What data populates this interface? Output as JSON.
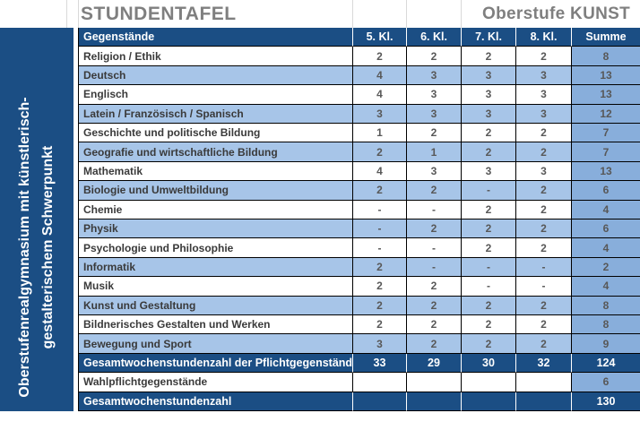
{
  "header": {
    "title": "STUNDENTAFEL",
    "right_label": "Oberstufe KUNST"
  },
  "sidebar": {
    "line1": "Oberstufenrealgymnasium mit künstlerisch-",
    "line2": "gestalterischem Schwerpunkt"
  },
  "table": {
    "columns": [
      "Gegenstände",
      "5. Kl.",
      "6. Kl.",
      "7. Kl.",
      "8. Kl.",
      "Summe"
    ],
    "rows": [
      {
        "label": "Religion / Ethik",
        "values": [
          "2",
          "2",
          "2",
          "2"
        ],
        "sum": "8",
        "type": "normal"
      },
      {
        "label": "Deutsch",
        "values": [
          "4",
          "3",
          "3",
          "3"
        ],
        "sum": "13",
        "type": "normal"
      },
      {
        "label": "Englisch",
        "values": [
          "4",
          "3",
          "3",
          "3"
        ],
        "sum": "13",
        "type": "normal"
      },
      {
        "label": "Latein / Französisch / Spanisch",
        "values": [
          "3",
          "3",
          "3",
          "3"
        ],
        "sum": "12",
        "type": "normal"
      },
      {
        "label": "Geschichte und politische Bildung",
        "values": [
          "1",
          "2",
          "2",
          "2"
        ],
        "sum": "7",
        "type": "normal"
      },
      {
        "label": "Geografie und wirtschaftliche Bildung",
        "values": [
          "2",
          "1",
          "2",
          "2"
        ],
        "sum": "7",
        "type": "normal"
      },
      {
        "label": "Mathematik",
        "values": [
          "4",
          "3",
          "3",
          "3"
        ],
        "sum": "13",
        "type": "normal"
      },
      {
        "label": "Biologie und Umweltbildung",
        "values": [
          "2",
          "2",
          "-",
          "2"
        ],
        "sum": "6",
        "type": "normal"
      },
      {
        "label": "Chemie",
        "values": [
          "-",
          "-",
          "2",
          "2"
        ],
        "sum": "4",
        "type": "normal"
      },
      {
        "label": "Physik",
        "values": [
          "-",
          "2",
          "2",
          "2"
        ],
        "sum": "6",
        "type": "normal"
      },
      {
        "label": "Psychologie und Philosophie",
        "values": [
          "-",
          "-",
          "2",
          "2"
        ],
        "sum": "4",
        "type": "normal"
      },
      {
        "label": "Informatik",
        "values": [
          "2",
          "-",
          "-",
          "-"
        ],
        "sum": "2",
        "type": "normal"
      },
      {
        "label": "Musik",
        "values": [
          "2",
          "2",
          "-",
          "-"
        ],
        "sum": "4",
        "type": "normal"
      },
      {
        "label": "Kunst und Gestaltung",
        "values": [
          "2",
          "2",
          "2",
          "2"
        ],
        "sum": "8",
        "type": "normal"
      },
      {
        "label": "Bildnerisches Gestalten und Werken",
        "values": [
          "2",
          "2",
          "2",
          "2"
        ],
        "sum": "8",
        "type": "normal"
      },
      {
        "label": "Bewegung und Sport",
        "values": [
          "3",
          "2",
          "2",
          "2"
        ],
        "sum": "9",
        "type": "normal"
      },
      {
        "label": "Gesamtwochenstundenzahl der Pflichtgegenstände",
        "values": [
          "33",
          "29",
          "30",
          "32"
        ],
        "sum": "124",
        "type": "total"
      },
      {
        "label": "Wahlpflichtgegenstände",
        "values": [
          "",
          "",
          "",
          ""
        ],
        "sum": "6",
        "type": "normal"
      },
      {
        "label": "Gesamtwochenstundenzahl",
        "values": [
          "",
          "",
          "",
          ""
        ],
        "sum": "130",
        "type": "total"
      }
    ]
  },
  "colors": {
    "dark_blue": "#1B4E84",
    "stripe_blue": "#A7C5E8",
    "sum_blue": "#88AEDB",
    "title_gray": "#7F7F7F",
    "label_text": "#3A3A3A",
    "value_text": "#585858",
    "band_line": "#D9D9D9"
  }
}
